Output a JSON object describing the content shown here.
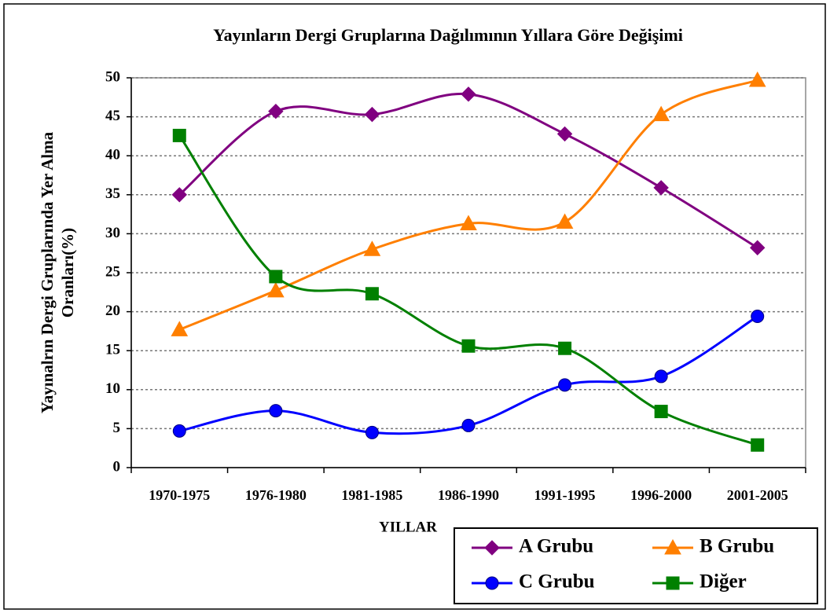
{
  "chart_data": {
    "type": "line",
    "title": "Yayınların Dergi Gruplarına Dağılımının Yıllara Göre Değişimi",
    "x_label": "YILLAR",
    "y_label": [
      "Yayınalrın Dergi Gruplarında Yer Alma",
      "Oranları(%)"
    ],
    "categories": [
      "1970-1975",
      "1976-1980",
      "1981-1985",
      "1986-1990",
      "1991-1995",
      "1996-2000",
      "2001-2005"
    ],
    "series": [
      {
        "name": "A Grubu",
        "color": "#800080",
        "marker": "diamond",
        "values": [
          35,
          45.7,
          45.3,
          47.9,
          42.8,
          35.9,
          28.2
        ]
      },
      {
        "name": "B Grubu",
        "color": "#ff7f00",
        "marker": "triangle",
        "values": [
          17.7,
          22.7,
          28,
          31.3,
          31.5,
          45.3,
          49.7
        ]
      },
      {
        "name": "C Grubu",
        "color": "#0000ff",
        "marker": "circle",
        "values": [
          4.7,
          7.3,
          4.5,
          5.4,
          10.6,
          11.7,
          19.4
        ]
      },
      {
        "name": "Diğer",
        "color": "#008000",
        "marker": "square",
        "values": [
          42.6,
          24.5,
          22.3,
          15.6,
          15.3,
          7.2,
          2.9
        ]
      }
    ],
    "ylim": [
      0,
      50
    ],
    "yticks": [
      0,
      5,
      10,
      15,
      20,
      25,
      30,
      35,
      40,
      45,
      50
    ],
    "grid": true,
    "smooth": true,
    "legend": "lower right"
  }
}
